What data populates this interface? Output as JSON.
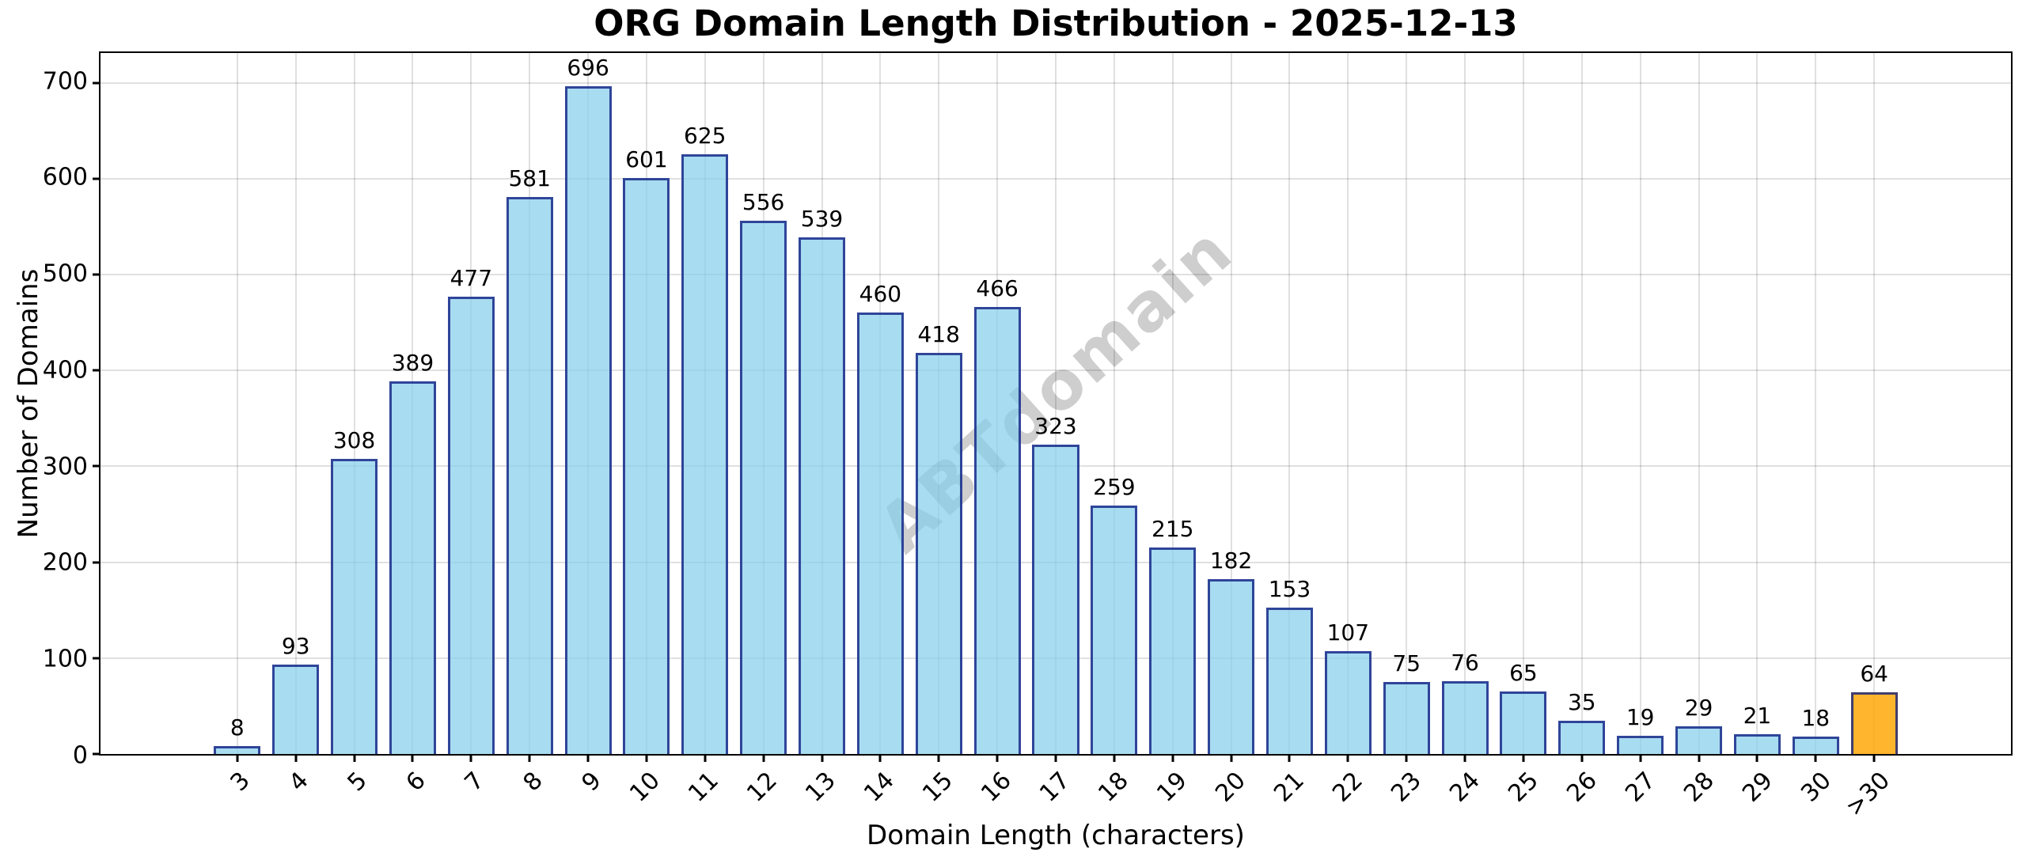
{
  "chart_data": {
    "type": "bar",
    "title": "ORG Domain Length Distribution - 2025-12-13",
    "xlabel": "Domain Length (characters)",
    "ylabel": "Number of Domains",
    "categories": [
      "3",
      "4",
      "5",
      "6",
      "7",
      "8",
      "9",
      "10",
      "11",
      "12",
      "13",
      "14",
      "15",
      "16",
      "17",
      "18",
      "19",
      "20",
      "21",
      "22",
      "23",
      "24",
      "25",
      "26",
      "27",
      "28",
      "29",
      "30",
      ">30"
    ],
    "values": [
      8,
      93,
      308,
      389,
      477,
      581,
      696,
      601,
      625,
      556,
      539,
      460,
      418,
      466,
      323,
      259,
      215,
      182,
      153,
      107,
      75,
      76,
      65,
      35,
      19,
      29,
      21,
      18,
      64
    ],
    "yticks": [
      0,
      100,
      200,
      300,
      400,
      500,
      600,
      700
    ],
    "ylim": [
      0,
      731
    ],
    "grid": true,
    "legend": "none",
    "bar_color": "#87CEEB",
    "bar_edge_color": "#0D1B80",
    "highlight_category": ">30",
    "highlight_color": "#FFA500",
    "watermark": "ABTdomain"
  }
}
